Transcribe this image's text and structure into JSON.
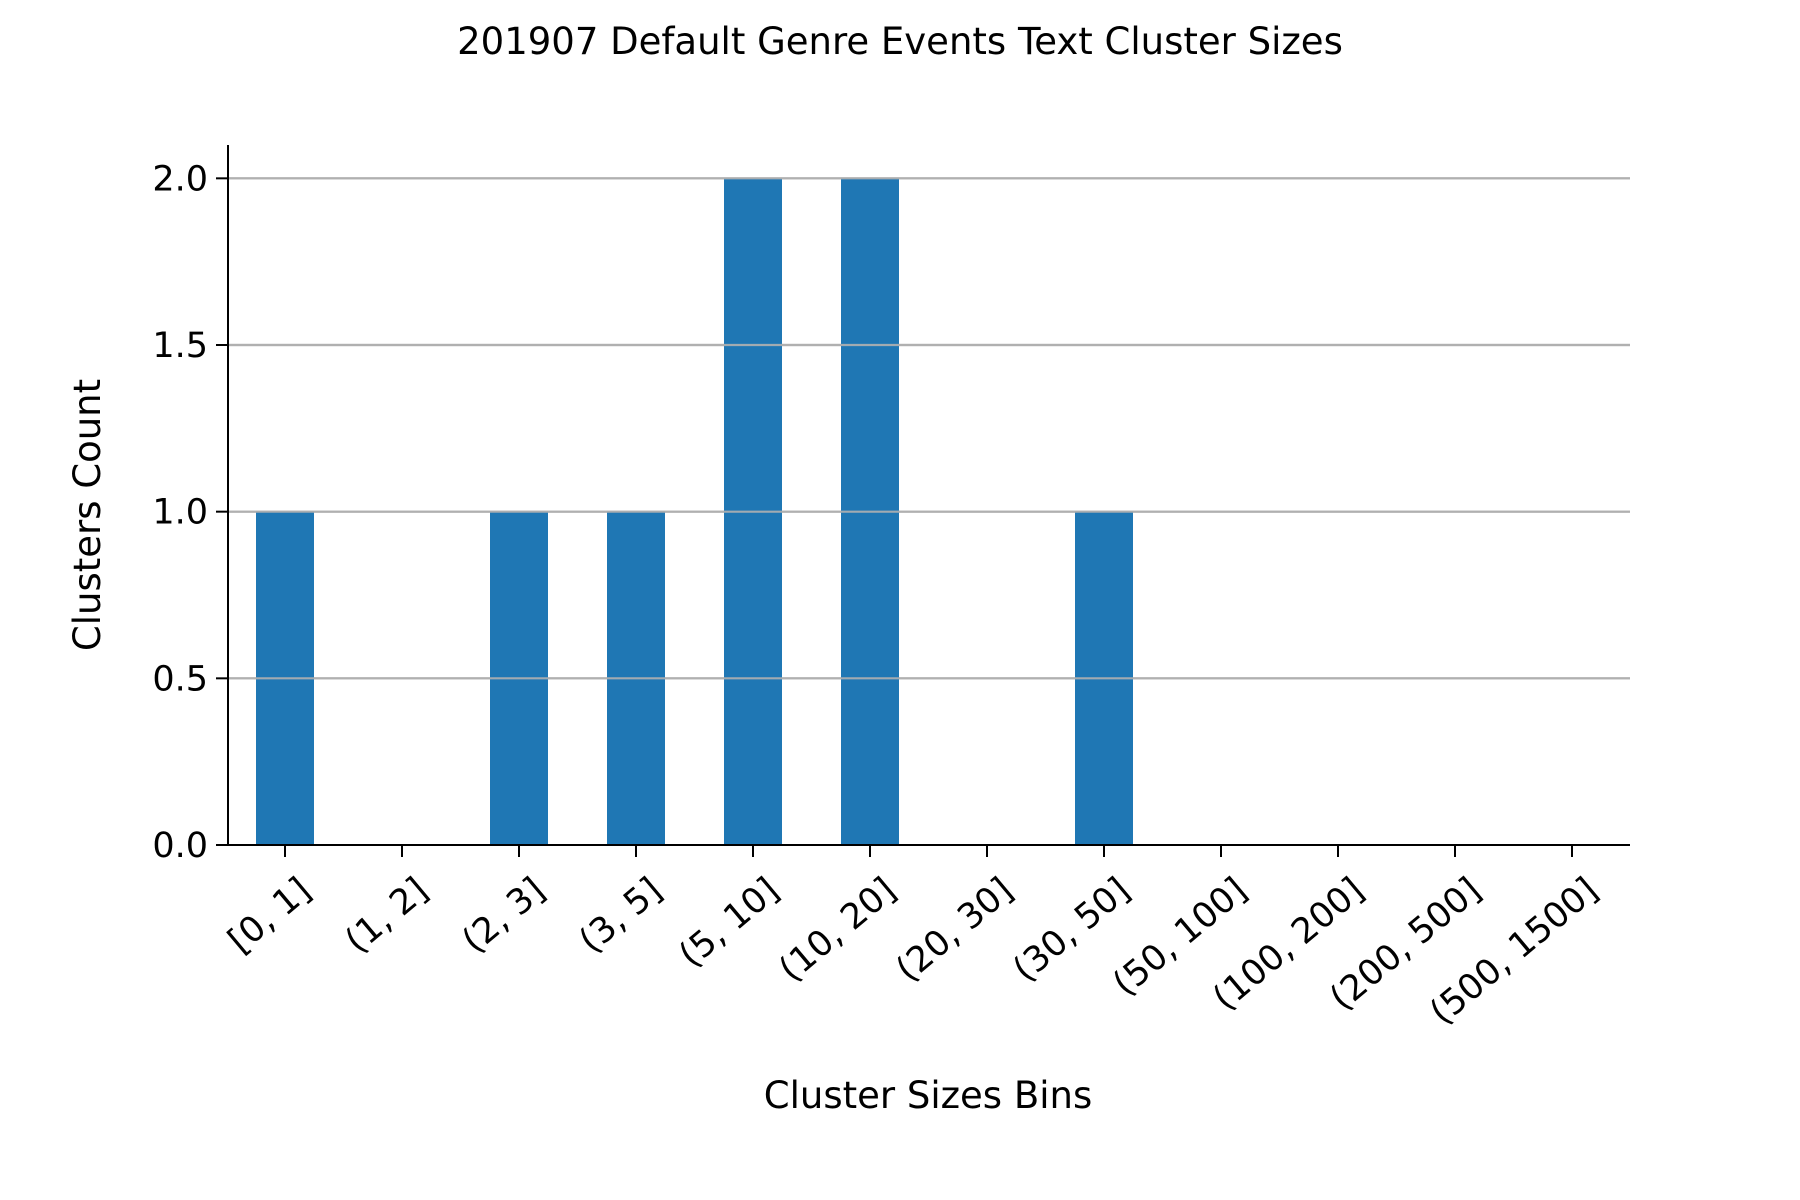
{
  "chart_data": {
    "type": "bar",
    "title": "201907 Default Genre Events Text Cluster Sizes",
    "xlabel": "Cluster Sizes Bins",
    "ylabel": "Clusters Count",
    "categories": [
      "[0, 1]",
      "(1, 2]",
      "(2, 3]",
      "(3, 5]",
      "(5, 10]",
      "(10, 20]",
      "(20, 30]",
      "(30, 50]",
      "(50, 100]",
      "(100, 200]",
      "(200, 500]",
      "(500, 1500]"
    ],
    "values": [
      1,
      0,
      1,
      1,
      2,
      2,
      0,
      1,
      0,
      0,
      0,
      0
    ],
    "ylim": [
      0,
      2.1
    ],
    "yticks": [
      0.0,
      0.5,
      1.0,
      1.5,
      2.0
    ],
    "ytick_labels": [
      "0.0",
      "0.5",
      "1.0",
      "1.5",
      "2.0"
    ],
    "grid": "horizontal",
    "bar_color": "#1f77b4",
    "grid_color": "#b0b0b0"
  }
}
